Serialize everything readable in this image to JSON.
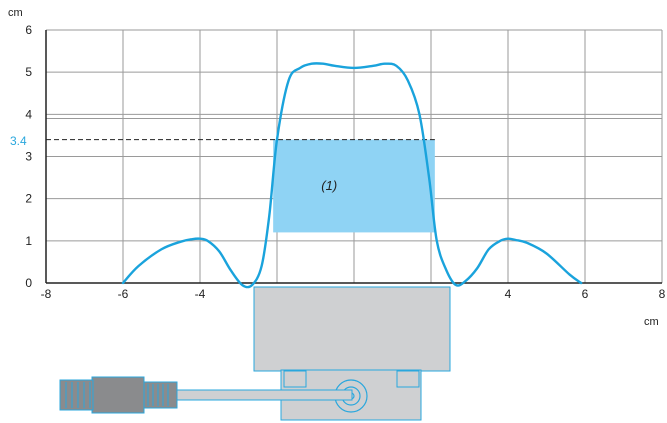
{
  "chart_data": {
    "type": "line",
    "y_unit": "cm",
    "x_unit": "cm",
    "xlim": [
      -8,
      8
    ],
    "ylim": [
      0,
      6
    ],
    "x_ticks": [
      -8,
      -6,
      -4,
      -2,
      0,
      2,
      4,
      6,
      8
    ],
    "y_ticks": [
      0,
      1,
      2,
      3,
      4,
      5,
      6
    ],
    "x_tick_labels": [
      "-8",
      "-6",
      "-4",
      "-2",
      "0",
      "2",
      "4",
      "6",
      "8"
    ],
    "y_tick_labels": [
      "0",
      "1",
      "2",
      "3",
      "4",
      "5",
      "6"
    ],
    "extra_y_labels": [
      {
        "text": "3.4"
      }
    ],
    "threshold": {
      "value": 3.4,
      "label": "3.4"
    },
    "zone": {
      "x": [
        -2.1,
        2.1
      ],
      "y": [
        1.2,
        3.4
      ],
      "label": "(1)"
    },
    "grid": true,
    "series": [
      {
        "color": "#1aa3dc",
        "x": [
          -6.0,
          -5.6,
          -5.0,
          -4.5,
          -4.2,
          -4.0,
          -3.8,
          -3.5,
          -3.2,
          -2.9,
          -2.65,
          -2.4,
          -2.2,
          -2.0,
          -1.7,
          -1.4,
          -1.1,
          -0.8,
          -0.5,
          0.0,
          0.5,
          0.8,
          1.1,
          1.4,
          1.7,
          1.95,
          2.15,
          2.4,
          2.65,
          2.9,
          3.2,
          3.5,
          3.8,
          4.0,
          4.2,
          4.5,
          5.0,
          5.6,
          5.9
        ],
        "y": [
          0.0,
          0.4,
          0.8,
          0.98,
          1.04,
          1.05,
          1.0,
          0.75,
          0.3,
          -0.05,
          -0.05,
          0.4,
          1.6,
          3.4,
          4.8,
          5.1,
          5.2,
          5.2,
          5.15,
          5.1,
          5.15,
          5.2,
          5.15,
          4.8,
          4.0,
          2.5,
          1.0,
          0.3,
          -0.05,
          0.05,
          0.35,
          0.8,
          1.0,
          1.05,
          1.02,
          0.95,
          0.7,
          0.2,
          0.0
        ]
      }
    ]
  },
  "colors": {
    "curve": "#1aa3dc",
    "zone_fill": "#8fd3f4",
    "grid": "#9a9a9a",
    "threshold_label": "#2aa7dd",
    "sensor_body": "#cfd0d2",
    "sensor_outline": "#2aa7dd",
    "connector": "#8a8b8d"
  },
  "icons": {
    "sensor": "sensor-body-icon",
    "connector": "cable-connector-icon"
  }
}
